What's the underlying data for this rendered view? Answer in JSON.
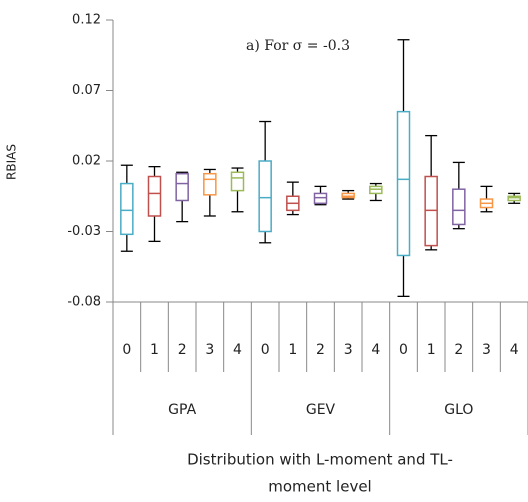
{
  "chart_data": {
    "type": "box",
    "annotation": "a) For σ = -0.3",
    "ylabel": "RBIAS",
    "xlabel_lines": [
      "Distribution with L-moment and TL-",
      "moment level"
    ],
    "ylim": [
      -0.08,
      0.12
    ],
    "yticks": [
      -0.08,
      -0.03,
      0.02,
      0.07,
      0.12
    ],
    "categories": [
      "0",
      "1",
      "2",
      "3",
      "4",
      "0",
      "1",
      "2",
      "3",
      "4",
      "0",
      "1",
      "2",
      "3",
      "4"
    ],
    "groups": [
      "GPA",
      "GEV",
      "GLO"
    ],
    "boxes": [
      {
        "color": "#4bacc6",
        "min": -0.044,
        "q1": -0.032,
        "median": -0.015,
        "q3": 0.004,
        "max": 0.017
      },
      {
        "color": "#c0504d",
        "min": -0.037,
        "q1": -0.019,
        "median": -0.003,
        "q3": 0.009,
        "max": 0.016
      },
      {
        "color": "#8064a2",
        "min": -0.023,
        "q1": -0.008,
        "median": 0.004,
        "q3": 0.011,
        "max": 0.012
      },
      {
        "color": "#f79646",
        "min": -0.019,
        "q1": -0.004,
        "median": 0.007,
        "q3": 0.011,
        "max": 0.014
      },
      {
        "color": "#9bbb59",
        "min": -0.016,
        "q1": -0.001,
        "median": 0.008,
        "q3": 0.012,
        "max": 0.015
      },
      {
        "color": "#4bacc6",
        "min": -0.038,
        "q1": -0.03,
        "median": -0.006,
        "q3": 0.02,
        "max": 0.048
      },
      {
        "color": "#c0504d",
        "min": -0.018,
        "q1": -0.015,
        "median": -0.01,
        "q3": -0.005,
        "max": 0.005
      },
      {
        "color": "#8064a2",
        "min": -0.011,
        "q1": -0.01,
        "median": -0.006,
        "q3": -0.003,
        "max": 0.002
      },
      {
        "color": "#f79646",
        "min": -0.007,
        "q1": -0.006,
        "median": -0.005,
        "q3": -0.003,
        "max": -0.001
      },
      {
        "color": "#9bbb59",
        "min": -0.008,
        "q1": -0.003,
        "median": 0.0,
        "q3": 0.002,
        "max": 0.004
      },
      {
        "color": "#4bacc6",
        "min": -0.076,
        "q1": -0.047,
        "median": 0.007,
        "q3": 0.055,
        "max": 0.106
      },
      {
        "color": "#c0504d",
        "min": -0.043,
        "q1": -0.04,
        "median": -0.015,
        "q3": 0.009,
        "max": 0.038
      },
      {
        "color": "#8064a2",
        "min": -0.028,
        "q1": -0.025,
        "median": -0.015,
        "q3": 0.0,
        "max": 0.019
      },
      {
        "color": "#f79646",
        "min": -0.016,
        "q1": -0.013,
        "median": -0.01,
        "q3": -0.007,
        "max": 0.002
      },
      {
        "color": "#9bbb59",
        "min": -0.01,
        "q1": -0.008,
        "median": -0.006,
        "q3": -0.005,
        "max": -0.003
      }
    ]
  }
}
